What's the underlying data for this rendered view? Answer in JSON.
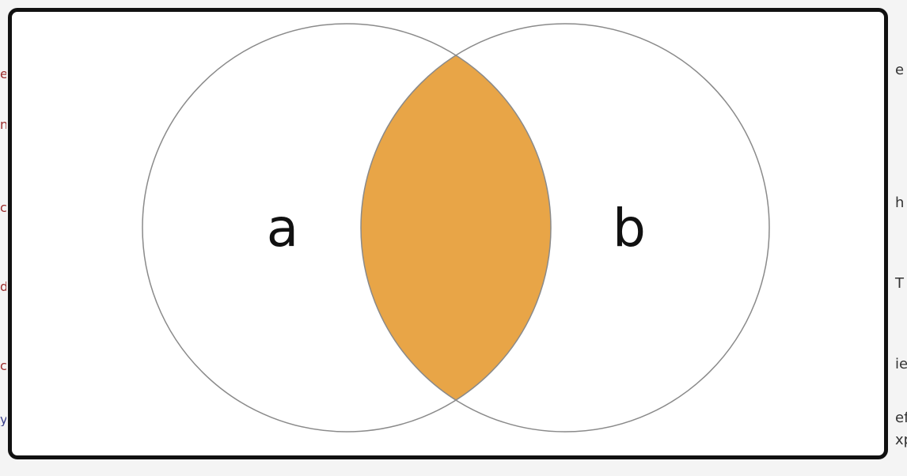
{
  "diagram": {
    "type": "venn",
    "sets": [
      {
        "label": "a"
      },
      {
        "label": "b"
      }
    ],
    "intersection_color": "#e8a547",
    "outline_color": "#8a8a8a",
    "frame_color": "#111111"
  },
  "edge_text": {
    "right": [
      "e",
      "h",
      "T",
      "ie",
      "ef",
      "xp"
    ]
  }
}
